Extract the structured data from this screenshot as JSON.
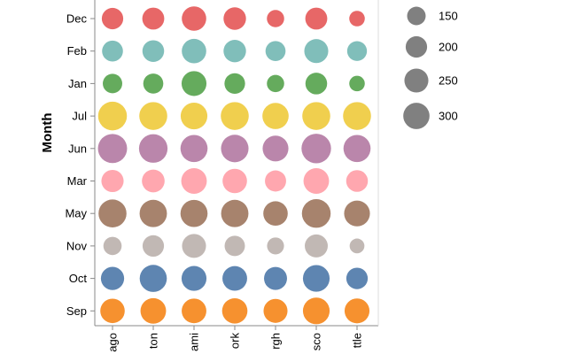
{
  "chart_data": {
    "type": "bubble",
    "ylabel": "Month",
    "months": [
      "Dec",
      "Feb",
      "Jan",
      "Jul",
      "Jun",
      "Mar",
      "May",
      "Nov",
      "Oct",
      "Sep"
    ],
    "cities": [
      "ago",
      "ton",
      "ami",
      "ork",
      "rgh",
      "sco",
      "ttle"
    ],
    "month_colors": {
      "Dec": "#e45756",
      "Feb": "#72b7b2",
      "Jan": "#54a24b",
      "Jul": "#eeca3b",
      "Jun": "#b279a2",
      "Mar": "#ff9da6",
      "May": "#9d755d",
      "Nov": "#bab0ac",
      "Oct": "#4c78a8",
      "Sep": "#f58518"
    },
    "values": {
      "Dec": [
        200,
        210,
        260,
        220,
        130,
        210,
        105
      ],
      "Feb": [
        190,
        205,
        260,
        220,
        175,
        250,
        170
      ],
      "Jan": [
        165,
        175,
        270,
        185,
        130,
        205,
        105
      ],
      "Jul": [
        360,
        340,
        310,
        340,
        300,
        340,
        340
      ],
      "Jun": [
        370,
        355,
        320,
        330,
        290,
        380,
        320
      ],
      "Mar": [
        215,
        225,
        285,
        260,
        195,
        285,
        205
      ],
      "May": [
        340,
        325,
        320,
        325,
        260,
        360,
        290
      ],
      "Nov": [
        145,
        200,
        250,
        180,
        125,
        230,
        95
      ],
      "Oct": [
        235,
        320,
        270,
        265,
        230,
        310,
        200
      ],
      "Sep": [
        260,
        285,
        265,
        280,
        250,
        310,
        270
      ]
    },
    "legend": {
      "title": "",
      "sizes": [
        150,
        200,
        250,
        300
      ],
      "color": "#808080"
    }
  }
}
